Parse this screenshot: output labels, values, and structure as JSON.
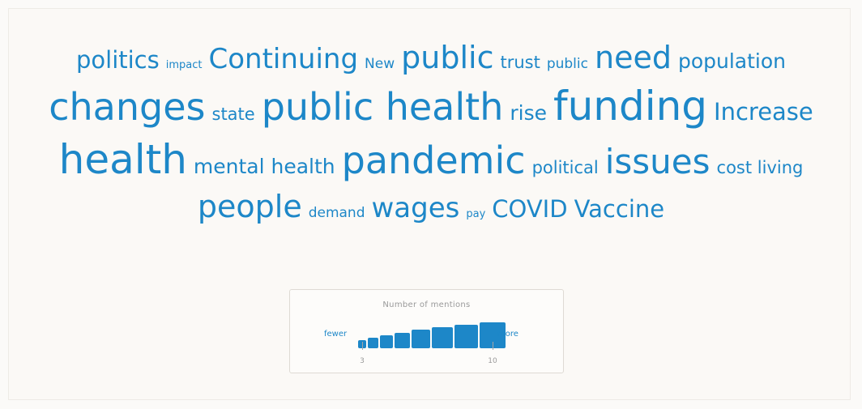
{
  "chart_data": {
    "type": "wordcloud",
    "color": "#1d87c8",
    "rows": [
      [
        {
          "text": "politics",
          "mentions": 5
        },
        {
          "text": "impact",
          "mentions": 1
        },
        {
          "text": "Continuing",
          "mentions": 6
        },
        {
          "text": "New",
          "mentions": 2
        },
        {
          "text": "public",
          "mentions": 7
        },
        {
          "text": "trust",
          "mentions": 3
        },
        {
          "text": "public",
          "mentions": 2
        },
        {
          "text": "need",
          "mentions": 7
        },
        {
          "text": "population",
          "mentions": 4
        }
      ],
      [
        {
          "text": "changes",
          "mentions": 9
        },
        {
          "text": "state",
          "mentions": 3
        },
        {
          "text": "public health",
          "mentions": 9
        },
        {
          "text": "rise",
          "mentions": 4
        },
        {
          "text": "funding",
          "mentions": 10
        },
        {
          "text": "Increase",
          "mentions": 5
        }
      ],
      [
        {
          "text": "health",
          "mentions": 10
        },
        {
          "text": "mental health",
          "mentions": 4
        },
        {
          "text": "pandemic",
          "mentions": 9
        },
        {
          "text": "political",
          "mentions": 3
        },
        {
          "text": "issues",
          "mentions": 8
        },
        {
          "text": "cost living",
          "mentions": 3
        }
      ],
      [
        {
          "text": "people",
          "mentions": 7
        },
        {
          "text": "demand",
          "mentions": 2
        },
        {
          "text": "wages",
          "mentions": 6
        },
        {
          "text": "pay",
          "mentions": 1
        },
        {
          "text": "COVID",
          "mentions": 5
        },
        {
          "text": "Vaccine",
          "mentions": 5
        }
      ]
    ]
  },
  "legend": {
    "title": "Number of mentions",
    "fewer_label": "fewer",
    "more_label": "more",
    "scale_steps": 8,
    "ticks": [
      {
        "label": "3",
        "step": 0
      },
      {
        "label": "10",
        "step": 7
      }
    ]
  }
}
